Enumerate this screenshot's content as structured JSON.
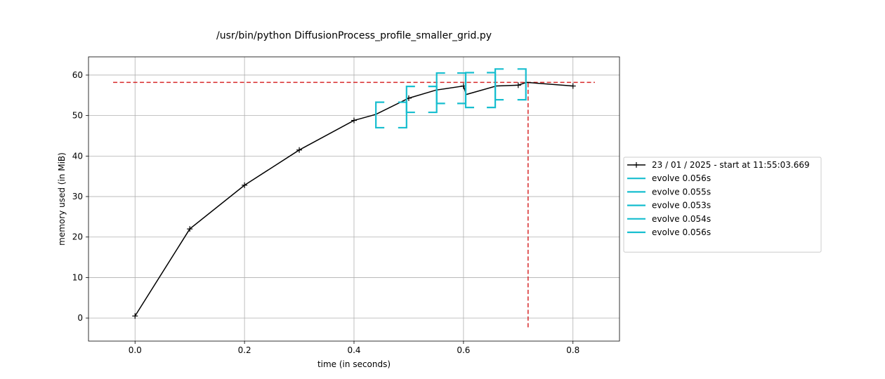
{
  "chart_data": {
    "type": "line",
    "title": "/usr/bin/python DiffusionProcess_profile_smaller_grid.py",
    "xlabel": "time (in seconds)",
    "ylabel": "memory used (in MiB)",
    "xlim": [
      -0.085,
      0.885
    ],
    "ylim": [
      -5.7,
      64.5
    ],
    "xticks": [
      0.0,
      0.2,
      0.4,
      0.6,
      0.8
    ],
    "xtick_labels": [
      "0.0",
      "0.2",
      "0.4",
      "0.6",
      "0.8"
    ],
    "yticks": [
      0,
      10,
      20,
      30,
      40,
      50,
      60
    ],
    "ytick_labels": [
      "0",
      "10",
      "20",
      "30",
      "40",
      "50",
      "60"
    ],
    "grid": true,
    "legend_position": "right-outside",
    "series": [
      {
        "name": "23 / 01 / 2025 - start at 11:55:03.669",
        "color": "#000000",
        "marker": "plus",
        "x": [
          0.0,
          0.1,
          0.2,
          0.3,
          0.4,
          0.44,
          0.5,
          0.55,
          0.6,
          0.605,
          0.66,
          0.7,
          0.715,
          0.8
        ],
        "y": [
          0.5,
          22.0,
          32.8,
          41.5,
          48.8,
          50.3,
          54.3,
          56.3,
          57.3,
          55.2,
          57.3,
          57.5,
          58.2,
          57.3
        ],
        "marker_idx": [
          0,
          1,
          2,
          3,
          4,
          6,
          8,
          11,
          13
        ]
      }
    ],
    "reference_lines": {
      "color": "#d62728",
      "peak_memory": 58.2,
      "h_xrange": [
        -0.04,
        0.84
      ],
      "peak_time": 0.718,
      "v_yrange": [
        -2.3,
        58.2
      ]
    },
    "function_brackets": {
      "color": "#17becf",
      "items": [
        {
          "label": "evolve 0.056s",
          "x0": 0.44,
          "x1": 0.496,
          "y0": 47.0,
          "y1": 53.3
        },
        {
          "label": "evolve 0.055s",
          "x0": 0.496,
          "x1": 0.551,
          "y0": 50.8,
          "y1": 57.2
        },
        {
          "label": "evolve 0.053s",
          "x0": 0.551,
          "x1": 0.604,
          "y0": 53.0,
          "y1": 60.5
        },
        {
          "label": "evolve 0.054s",
          "x0": 0.604,
          "x1": 0.658,
          "y0": 52.0,
          "y1": 60.6
        },
        {
          "label": "evolve 0.056s",
          "x0": 0.658,
          "x1": 0.714,
          "y0": 53.9,
          "y1": 61.5
        }
      ]
    }
  }
}
